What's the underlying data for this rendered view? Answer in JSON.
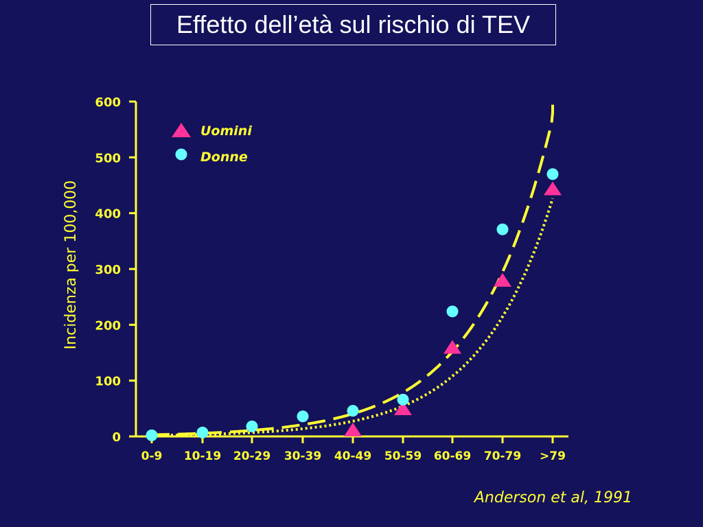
{
  "chart_data": {
    "type": "scatter",
    "title": "Effetto dell’età sul rischio di TEV",
    "ylabel": "Incidenza per  100,000",
    "xlabel": "",
    "categories": [
      "0-9",
      "10-19",
      "20-29",
      "30-39",
      "40-49",
      "50-59",
      "60-69",
      "70-79",
      ">79"
    ],
    "ylim": [
      0,
      600
    ],
    "yticks": [
      0,
      100,
      200,
      300,
      400,
      500,
      600
    ],
    "series": [
      {
        "name": "Uomini",
        "marker": "triangle",
        "color": "#ff3399",
        "values": [
          null,
          null,
          null,
          null,
          10,
          48,
          158,
          278,
          442
        ]
      },
      {
        "name": "Donne",
        "marker": "circle",
        "color": "#66ffff",
        "values": [
          2,
          7,
          18,
          36,
          46,
          66,
          224,
          371,
          470
        ]
      }
    ],
    "trendlines": [
      {
        "series": "Uomini",
        "style": "dashed",
        "color": "#ffff33"
      },
      {
        "series": "Donne",
        "style": "dotted",
        "color": "#ffff33"
      }
    ],
    "legend_position": "top-left",
    "source": "Anderson et al, 1991"
  }
}
